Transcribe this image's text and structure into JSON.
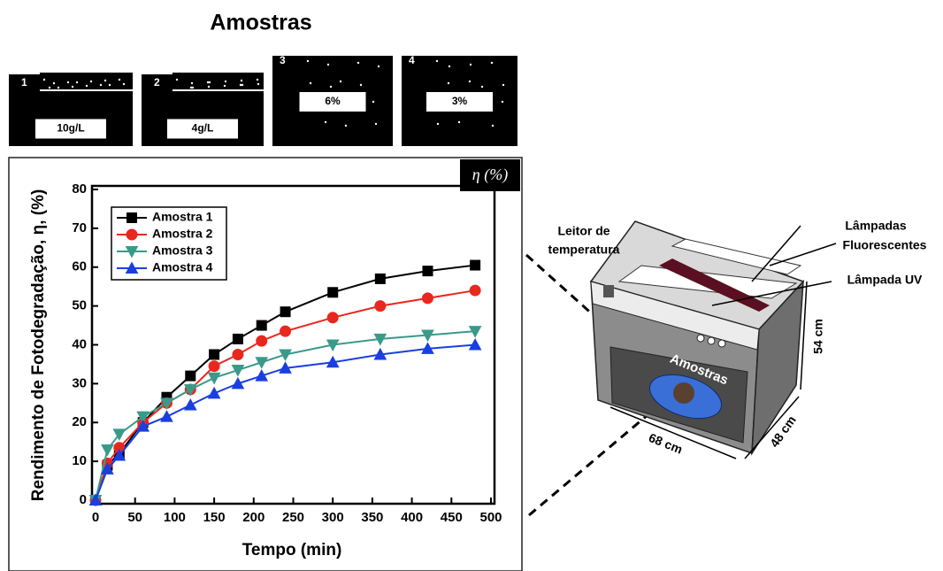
{
  "header": {
    "title": "Amostras"
  },
  "samples": [
    {
      "number": "1",
      "label": "10g/L"
    },
    {
      "number": "2",
      "label": "4g/L"
    },
    {
      "number": "3",
      "label": "6%"
    },
    {
      "number": "4",
      "label": "3%"
    }
  ],
  "chart_data": {
    "type": "line",
    "badge": "η (%)",
    "x_label": "Tempo (min)",
    "y_label": "Rendimento de Fotodegradação, η, (%)",
    "x": [
      0,
      15,
      30,
      60,
      90,
      120,
      150,
      180,
      210,
      240,
      300,
      360,
      420,
      480
    ],
    "series": [
      {
        "name": "Amostra 1",
        "color": "#000000",
        "marker": "square",
        "values": [
          0,
          9,
          12,
          20,
          26.5,
          32,
          37.5,
          41.5,
          45,
          48.5,
          53.5,
          57,
          59,
          60.5
        ]
      },
      {
        "name": "Amostra 2",
        "color": "#e8281e",
        "marker": "circle",
        "values": [
          0,
          9.5,
          13.5,
          20,
          25,
          28.5,
          34.5,
          37.5,
          41,
          43.5,
          47,
          50,
          52,
          54
        ]
      },
      {
        "name": "Amostra 3",
        "color": "#3a9a8a",
        "marker": "triangle-down",
        "values": [
          0,
          13,
          17,
          21.5,
          25,
          28.5,
          31.5,
          33.5,
          35.5,
          37.5,
          40,
          41.5,
          42.5,
          43.5
        ]
      },
      {
        "name": "Amostra 4",
        "color": "#1a3fe0",
        "marker": "triangle-up",
        "values": [
          0,
          8,
          11.5,
          19,
          21.5,
          24.5,
          27.5,
          30,
          32,
          34,
          35.5,
          37.5,
          39,
          40
        ]
      }
    ],
    "xlim": [
      0,
      500
    ],
    "ylim": [
      0,
      80
    ],
    "xticks": [
      0,
      50,
      100,
      150,
      200,
      250,
      300,
      350,
      400,
      450,
      500
    ],
    "yticks": [
      0,
      10,
      20,
      30,
      40,
      50,
      60,
      70,
      80
    ],
    "grid": false,
    "legend": "upper-left"
  },
  "diagram": {
    "sensor_label": [
      "Leitor de",
      "temperatura"
    ],
    "fluorescent_label": [
      "Lâmpadas",
      "Fluorescentes"
    ],
    "uv_label": "Lâmpada UV",
    "samples_label": "Amostras",
    "height_label": "54 cm",
    "width_label": "68 cm",
    "depth_label": "48 cm"
  }
}
